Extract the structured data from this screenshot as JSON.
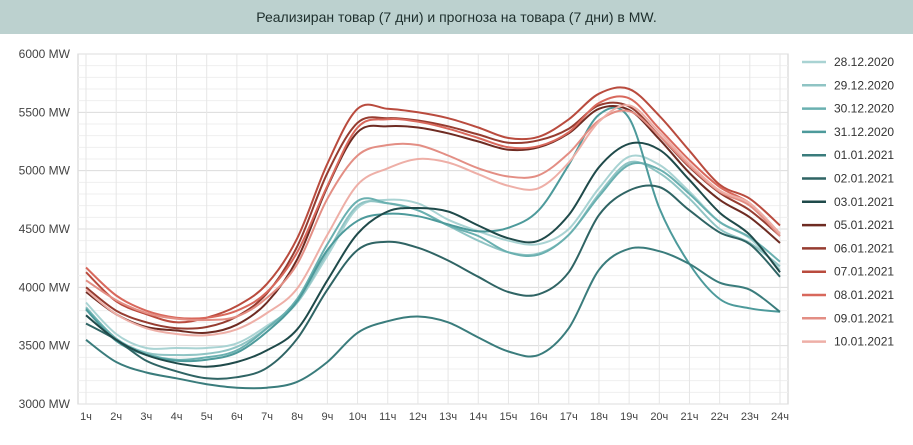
{
  "chart_data": {
    "type": "line",
    "title": "Реализиран товар (7 дни) и прогноза на товара (7 дни) в MW.",
    "xlabel": "",
    "ylabel": "",
    "ylim": [
      3000,
      6000
    ],
    "yticks": [
      3000,
      3500,
      4000,
      4500,
      5000,
      5500,
      6000
    ],
    "ytick_labels": [
      "3000 MW",
      "3500 MW",
      "4000 MW",
      "4500 MW",
      "5000 MW",
      "5500 MW",
      "6000 MW"
    ],
    "x": [
      "1ч",
      "2ч",
      "3ч",
      "4ч",
      "5ч",
      "6ч",
      "7ч",
      "8ч",
      "9ч",
      "10ч",
      "11ч",
      "12ч",
      "13ч",
      "14ч",
      "15ч",
      "16ч",
      "17ч",
      "18ч",
      "19ч",
      "20ч",
      "21ч",
      "22ч",
      "23ч",
      "24ч"
    ],
    "grid": true,
    "legend_position": "right",
    "series": [
      {
        "name": "28.12.2020",
        "color": "#a9d3d3",
        "values": [
          3870,
          3600,
          3480,
          3480,
          3480,
          3520,
          3670,
          3870,
          4270,
          4680,
          4750,
          4720,
          4580,
          4480,
          4400,
          4370,
          4500,
          4850,
          5120,
          5050,
          4820,
          4560,
          4420,
          4150
        ]
      },
      {
        "name": "29.12.2020",
        "color": "#8fc4c4",
        "values": [
          3830,
          3560,
          3440,
          3420,
          3430,
          3490,
          3650,
          3870,
          4300,
          4700,
          4720,
          4660,
          4530,
          4400,
          4300,
          4290,
          4450,
          4800,
          5070,
          4980,
          4760,
          4500,
          4380,
          4180
        ]
      },
      {
        "name": "30.12.2020",
        "color": "#6ab0b0",
        "values": [
          3820,
          3560,
          3430,
          3380,
          3400,
          3460,
          3650,
          3900,
          4370,
          4740,
          4720,
          4660,
          4530,
          4440,
          4300,
          4280,
          4450,
          4780,
          5050,
          5010,
          4800,
          4560,
          4430,
          4220
        ]
      },
      {
        "name": "31.12.2020",
        "color": "#4d9a9b",
        "values": [
          3810,
          3540,
          3420,
          3370,
          3380,
          3440,
          3620,
          3880,
          4320,
          4570,
          4630,
          4610,
          4540,
          4480,
          4510,
          4660,
          5050,
          5480,
          5450,
          4680,
          4200,
          3900,
          3820,
          3790
        ]
      },
      {
        "name": "01.01.2021",
        "color": "#3a7c7c",
        "values": [
          3550,
          3360,
          3270,
          3220,
          3170,
          3140,
          3140,
          3190,
          3360,
          3610,
          3710,
          3750,
          3700,
          3570,
          3450,
          3420,
          3650,
          4150,
          4330,
          4310,
          4200,
          4040,
          3980,
          3790
        ]
      },
      {
        "name": "02.01.2021",
        "color": "#2f6464",
        "values": [
          3690,
          3550,
          3370,
          3280,
          3220,
          3230,
          3310,
          3560,
          3980,
          4320,
          4390,
          4340,
          4230,
          4090,
          3960,
          3940,
          4130,
          4620,
          4830,
          4860,
          4660,
          4470,
          4370,
          4090
        ]
      },
      {
        "name": "03.01.2021",
        "color": "#1f4a4a",
        "values": [
          3760,
          3550,
          3420,
          3350,
          3320,
          3360,
          3460,
          3640,
          4060,
          4460,
          4650,
          4680,
          4650,
          4530,
          4420,
          4400,
          4620,
          5030,
          5230,
          5180,
          4920,
          4640,
          4450,
          4130
        ]
      },
      {
        "name": "05.01.2021",
        "color": "#6e2b22",
        "values": [
          3960,
          3770,
          3660,
          3630,
          3610,
          3680,
          3870,
          4240,
          4860,
          5330,
          5380,
          5370,
          5320,
          5250,
          5180,
          5200,
          5320,
          5530,
          5520,
          5270,
          4980,
          4750,
          4600,
          4380
        ]
      },
      {
        "name": "06.01.2021",
        "color": "#963c30",
        "values": [
          4000,
          3800,
          3700,
          3650,
          3660,
          3750,
          3950,
          4350,
          4980,
          5410,
          5450,
          5430,
          5380,
          5310,
          5240,
          5260,
          5360,
          5560,
          5550,
          5300,
          5030,
          4810,
          4660,
          4440
        ]
      },
      {
        "name": "07.01.2021",
        "color": "#b94b3e",
        "values": [
          4130,
          3880,
          3770,
          3700,
          3740,
          3840,
          4030,
          4420,
          5060,
          5530,
          5530,
          5500,
          5450,
          5370,
          5280,
          5290,
          5440,
          5660,
          5700,
          5470,
          5170,
          4880,
          4760,
          4530
        ]
      },
      {
        "name": "08.01.2021",
        "color": "#d8685c",
        "values": [
          4170,
          3930,
          3800,
          3740,
          3740,
          3800,
          3960,
          4300,
          4870,
          5370,
          5440,
          5420,
          5360,
          5280,
          5200,
          5210,
          5330,
          5580,
          5620,
          5360,
          5090,
          4860,
          4720,
          4460
        ]
      },
      {
        "name": "09.01.2021",
        "color": "#e38e84",
        "values": [
          4060,
          3890,
          3780,
          3730,
          3720,
          3750,
          3910,
          4200,
          4760,
          5130,
          5220,
          5220,
          5130,
          5020,
          4950,
          4960,
          5150,
          5430,
          5510,
          5300,
          5040,
          4820,
          4700,
          4440
        ]
      },
      {
        "name": "10.01.2021",
        "color": "#eeafa7",
        "values": [
          3980,
          3770,
          3650,
          3600,
          3590,
          3640,
          3780,
          3990,
          4450,
          4880,
          5020,
          5100,
          5070,
          4970,
          4870,
          4850,
          5070,
          5420,
          5560,
          5330,
          5060,
          4830,
          4720,
          4460
        ]
      }
    ]
  }
}
